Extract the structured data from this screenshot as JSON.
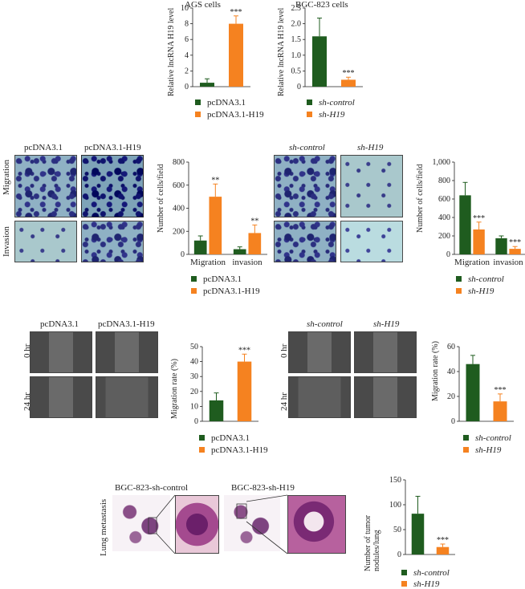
{
  "figure": {
    "panelA": {
      "left": {
        "title": "AGS cells",
        "ylabel": "Relative lncRNA H19 level",
        "legend": [
          "pcDNA3.1",
          "pcDNA3.1-H19"
        ]
      },
      "right": {
        "title": "BGC-823 cells",
        "ylabel": "Relative lncRNA H19 level",
        "legend": [
          "sh-control",
          "sh-H19"
        ]
      }
    },
    "panelB": {
      "left": {
        "col_labels": [
          "pcDNA3.1",
          "pcDNA3.1-H19"
        ],
        "row_labels": [
          "Migration",
          "Invasion"
        ],
        "ylabel": "Number of cells/field",
        "legend": [
          "pcDNA3.1",
          "pcDNA3.1-H19"
        ]
      },
      "right": {
        "col_labels": [
          "sh-control",
          "sh-H19"
        ],
        "ylabel": "Number of cells/field",
        "legend": [
          "sh-control",
          "sh-H19"
        ]
      }
    },
    "panelC": {
      "left": {
        "col_labels": [
          "pcDNA3.1",
          "pcDNA3.1-H19"
        ],
        "row_labels": [
          "0 hr",
          "24 hr"
        ],
        "ylabel": "Migration rate (%)",
        "legend": [
          "pcDNA3.1",
          "pcDNA3.1-H19"
        ]
      },
      "right": {
        "col_labels": [
          "sh-control",
          "sh-H19"
        ],
        "row_labels": [
          "0 hr",
          "24 hr"
        ],
        "ylabel": "Migration rate (%)",
        "legend": [
          "sh-control",
          "sh-H19"
        ]
      }
    },
    "panelD": {
      "col_labels": [
        "BGC-823-sh-control",
        "BGC-823-sh-H19"
      ],
      "row_label": "Lung metastasis",
      "ylabel": "Number of tumor nodules/lung",
      "legend": [
        "sh-control",
        "sh-H19"
      ]
    },
    "colors": {
      "green": "#1f5c1f",
      "orange": "#f58220"
    }
  },
  "chart_data": [
    {
      "id": "ags",
      "type": "bar",
      "categories": [
        "pcDNA3.1",
        "pcDNA3.1-H19"
      ],
      "values": [
        0.5,
        8.0
      ],
      "errors": [
        0.5,
        1.0
      ],
      "ylim": [
        0,
        10
      ],
      "yticks": [
        "0",
        "2",
        "4",
        "6",
        "8",
        "10"
      ],
      "sig": [
        "",
        "***"
      ],
      "xlabels": []
    },
    {
      "id": "bgc",
      "type": "bar",
      "categories": [
        "sh-control",
        "sh-H19"
      ],
      "values": [
        1.6,
        0.22
      ],
      "errors": [
        0.58,
        0.08
      ],
      "ylim": [
        0,
        2.5
      ],
      "yticks": [
        "0",
        "0.5",
        "1.0",
        "1.5",
        "2.0",
        "2.5"
      ],
      "sig": [
        "",
        "***"
      ],
      "xlabels": []
    },
    {
      "id": "mig_inv_oe",
      "type": "bar",
      "categories": [
        "Migration",
        "invasion"
      ],
      "series": [
        {
          "name": "pcDNA3.1",
          "values": [
            120,
            45
          ],
          "errors": [
            40,
            20
          ]
        },
        {
          "name": "pcDNA3.1-H19",
          "values": [
            500,
            185
          ],
          "errors": [
            110,
            70
          ]
        }
      ],
      "ylim": [
        0,
        800
      ],
      "yticks": [
        "0",
        "200",
        "400",
        "600",
        "800"
      ],
      "sig": [
        [
          "",
          "**"
        ],
        [
          "",
          "**"
        ]
      ],
      "xlabels": [
        "Migration",
        "invasion"
      ]
    },
    {
      "id": "mig_inv_kd",
      "type": "bar",
      "categories": [
        "Migration",
        "invasion"
      ],
      "series": [
        {
          "name": "sh-control",
          "values": [
            640,
            175
          ],
          "errors": [
            140,
            25
          ]
        },
        {
          "name": "sh-H19",
          "values": [
            270,
            60
          ],
          "errors": [
            80,
            25
          ]
        }
      ],
      "ylim": [
        0,
        1000
      ],
      "yticks": [
        "0",
        "200",
        "400",
        "600",
        "800",
        "1,000"
      ],
      "sig": [
        [
          "",
          "***"
        ],
        [
          "",
          "***"
        ]
      ],
      "xlabels": [
        "Migration",
        "invasion"
      ]
    },
    {
      "id": "wound_oe",
      "type": "bar",
      "categories": [
        "pcDNA3.1",
        "pcDNA3.1-H19"
      ],
      "values": [
        14,
        40
      ],
      "errors": [
        5,
        5
      ],
      "ylim": [
        0,
        50
      ],
      "yticks": [
        "0",
        "10",
        "20",
        "30",
        "40",
        "50"
      ],
      "sig": [
        "",
        "***"
      ],
      "xlabels": []
    },
    {
      "id": "wound_kd",
      "type": "bar",
      "categories": [
        "sh-control",
        "sh-H19"
      ],
      "values": [
        46,
        16
      ],
      "errors": [
        7,
        6
      ],
      "ylim": [
        0,
        60
      ],
      "yticks": [
        "0",
        "20",
        "40",
        "60"
      ],
      "sig": [
        "",
        "***"
      ],
      "xlabels": []
    },
    {
      "id": "nodules",
      "type": "bar",
      "categories": [
        "sh-control",
        "sh-H19"
      ],
      "values": [
        82,
        15
      ],
      "errors": [
        35,
        6
      ],
      "ylim": [
        0,
        150
      ],
      "yticks": [
        "0",
        "50",
        "100",
        "150"
      ],
      "sig": [
        "",
        "***"
      ],
      "xlabels": []
    }
  ]
}
